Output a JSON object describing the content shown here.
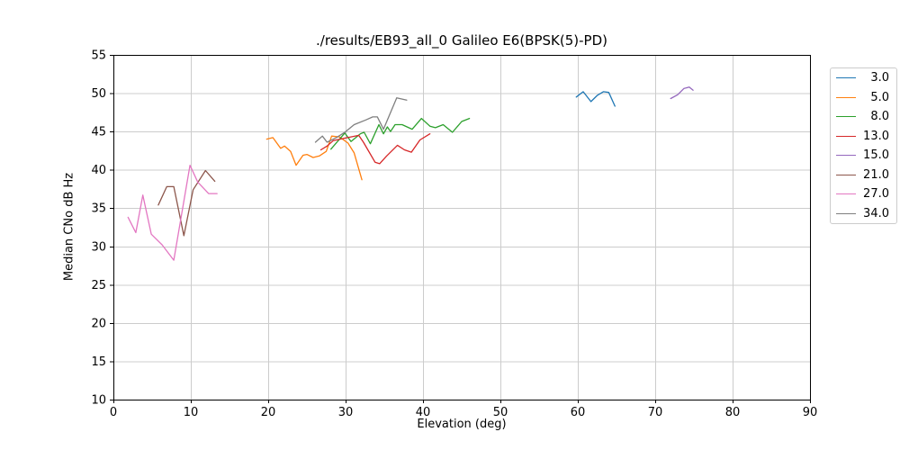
{
  "chart_data": {
    "type": "line",
    "title": "./results/EB93_all_0 Galileo E6(BPSK(5)-PD)",
    "xlabel": "Elevation (deg)",
    "ylabel": "Median CNo dB Hz",
    "xlim": [
      0,
      90
    ],
    "ylim": [
      10,
      55
    ],
    "xticks": [
      0,
      10,
      20,
      30,
      40,
      50,
      60,
      70,
      80,
      90
    ],
    "yticks": [
      10,
      15,
      20,
      25,
      30,
      35,
      40,
      45,
      50,
      55
    ],
    "grid": true,
    "grid_color": "#cccccc",
    "spine_color": "#000000",
    "legend_position": "outside-right",
    "series": [
      {
        "name": "3.0",
        "color": "#1f77b4",
        "points": [
          [
            59.8,
            49.5
          ],
          [
            60.7,
            50.2
          ],
          [
            61.7,
            48.9
          ],
          [
            62.5,
            49.7
          ],
          [
            63.3,
            50.2
          ],
          [
            64.0,
            50.1
          ],
          [
            64.8,
            48.3
          ]
        ]
      },
      {
        "name": "5.0",
        "color": "#ff7f0e",
        "points": [
          [
            19.8,
            44.0
          ],
          [
            20.6,
            44.2
          ],
          [
            21.6,
            42.8
          ],
          [
            22.1,
            43.1
          ],
          [
            22.9,
            42.4
          ],
          [
            23.6,
            40.6
          ],
          [
            24.5,
            41.9
          ],
          [
            25.0,
            42.0
          ],
          [
            25.8,
            41.6
          ],
          [
            26.6,
            41.8
          ],
          [
            27.5,
            42.4
          ],
          [
            28.2,
            44.4
          ],
          [
            29.2,
            44.3
          ],
          [
            30.3,
            43.5
          ],
          [
            31.1,
            42.2
          ],
          [
            32.1,
            38.7
          ]
        ]
      },
      {
        "name": "8.0",
        "color": "#2ca02c",
        "points": [
          [
            28.1,
            42.7
          ],
          [
            29.9,
            44.8
          ],
          [
            30.7,
            43.7
          ],
          [
            31.9,
            44.7
          ],
          [
            32.4,
            44.9
          ],
          [
            33.2,
            43.4
          ],
          [
            34.3,
            45.9
          ],
          [
            34.9,
            44.7
          ],
          [
            35.4,
            45.6
          ],
          [
            35.8,
            45.0
          ],
          [
            36.4,
            45.9
          ],
          [
            37.3,
            45.9
          ],
          [
            38.6,
            45.3
          ],
          [
            39.8,
            46.7
          ],
          [
            40.9,
            45.7
          ],
          [
            41.6,
            45.5
          ],
          [
            42.6,
            45.9
          ],
          [
            43.8,
            44.9
          ],
          [
            45.0,
            46.3
          ],
          [
            46.0,
            46.7
          ]
        ]
      },
      {
        "name": "13.0",
        "color": "#d62728",
        "points": [
          [
            26.8,
            42.6
          ],
          [
            27.6,
            43.1
          ],
          [
            28.4,
            43.8
          ],
          [
            29.3,
            44.0
          ],
          [
            30.7,
            44.3
          ],
          [
            31.7,
            44.5
          ],
          [
            32.3,
            43.6
          ],
          [
            33.8,
            41.0
          ],
          [
            34.4,
            40.8
          ],
          [
            35.3,
            41.8
          ],
          [
            36.7,
            43.2
          ],
          [
            37.6,
            42.6
          ],
          [
            38.5,
            42.3
          ],
          [
            39.6,
            43.9
          ],
          [
            40.9,
            44.7
          ]
        ]
      },
      {
        "name": "15.0",
        "color": "#9467bd",
        "points": [
          [
            72.0,
            49.3
          ],
          [
            72.9,
            49.8
          ],
          [
            73.7,
            50.6
          ],
          [
            74.4,
            50.8
          ],
          [
            74.9,
            50.4
          ]
        ]
      },
      {
        "name": "21.0",
        "color": "#8c564b",
        "points": [
          [
            5.8,
            35.4
          ],
          [
            6.9,
            37.8
          ],
          [
            7.8,
            37.8
          ],
          [
            9.1,
            31.4
          ],
          [
            10.3,
            37.4
          ],
          [
            11.9,
            39.9
          ],
          [
            13.1,
            38.5
          ]
        ]
      },
      {
        "name": "27.0",
        "color": "#e377c2",
        "points": [
          [
            1.9,
            33.8
          ],
          [
            2.9,
            31.8
          ],
          [
            3.8,
            36.7
          ],
          [
            4.9,
            31.6
          ],
          [
            6.3,
            30.2
          ],
          [
            7.8,
            28.2
          ],
          [
            9.9,
            40.6
          ],
          [
            10.9,
            38.4
          ],
          [
            12.3,
            36.9
          ],
          [
            13.4,
            36.9
          ]
        ]
      },
      {
        "name": "34.0",
        "color": "#7f7f7f",
        "points": [
          [
            26.1,
            43.6
          ],
          [
            27.0,
            44.4
          ],
          [
            27.6,
            43.6
          ],
          [
            28.8,
            44.2
          ],
          [
            29.9,
            44.9
          ],
          [
            31.1,
            45.9
          ],
          [
            32.6,
            46.5
          ],
          [
            33.5,
            46.9
          ],
          [
            34.1,
            46.9
          ],
          [
            34.9,
            45.3
          ],
          [
            36.6,
            49.4
          ],
          [
            37.9,
            49.1
          ]
        ]
      }
    ]
  }
}
